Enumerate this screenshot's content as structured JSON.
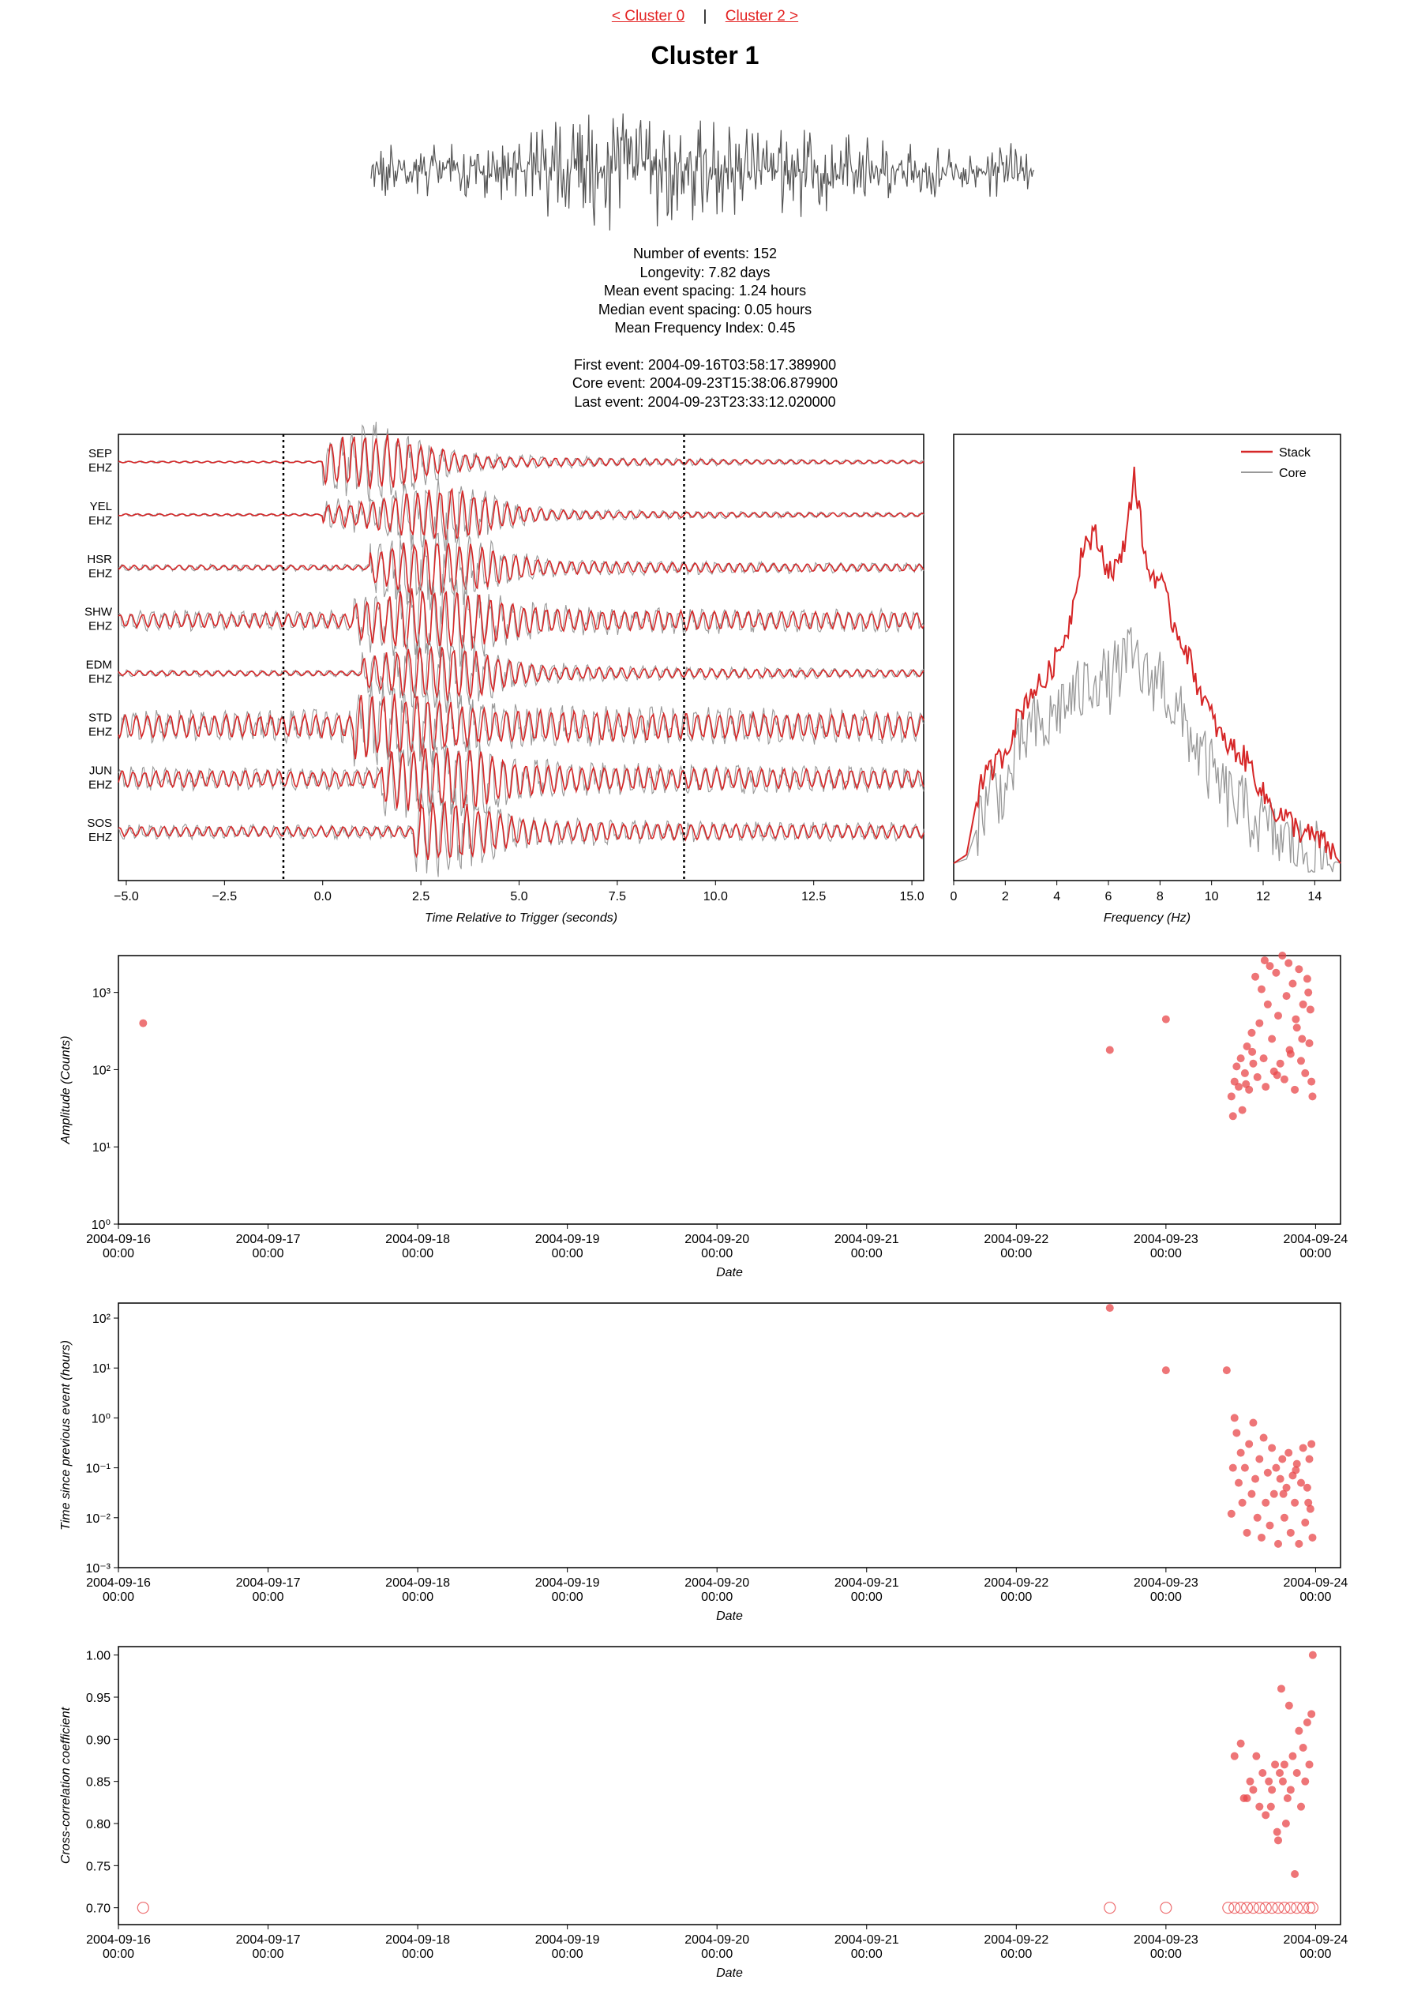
{
  "nav": {
    "prev_label": "< Cluster 0",
    "separator": "|",
    "next_label": "Cluster 2 >"
  },
  "page_title": "Cluster 1",
  "stats": {
    "num_events": "Number of events: 152",
    "longevity": "Longevity: 7.82 days",
    "mean_spacing": "Mean event spacing: 1.24 hours",
    "median_spacing": "Median event spacing: 0.05 hours",
    "mean_fi": "Mean Frequency Index: 0.45",
    "first_event": "First event: 2004-09-16T03:58:17.389900",
    "core_event": "Core event: 2004-09-23T15:38:06.879900",
    "last_event": "Last event: 2004-09-23T23:33:12.020000"
  },
  "colors": {
    "stack": "#d62728",
    "core": "#999999",
    "marker": "#e8474a",
    "nav_link": "#e32222"
  },
  "chart_data": [
    {
      "type": "line",
      "id": "waveforms",
      "xlabel": "Time Relative to Trigger (seconds)",
      "ylabel": "",
      "xlim": [
        -5.2,
        15.3
      ],
      "xticks": [
        -5.0,
        -2.5,
        0.0,
        2.5,
        5.0,
        7.5,
        10.0,
        12.5,
        15.0
      ],
      "tick_labels": [
        "−5.0",
        "−2.5",
        "0.0",
        "2.5",
        "5.0",
        "7.5",
        "10.0",
        "12.5",
        "15.0"
      ],
      "window_markers": [
        -1.0,
        9.2
      ],
      "stations": [
        {
          "station": "SEP",
          "channel": "EHZ",
          "onset": 0.0,
          "peak": 1.3,
          "noise": 0.04
        },
        {
          "station": "YEL",
          "channel": "EHZ",
          "onset": 0.0,
          "peak": 3.0,
          "noise": 0.05
        },
        {
          "station": "HSR",
          "channel": "EHZ",
          "onset": 1.2,
          "peak": 3.0,
          "noise": 0.12
        },
        {
          "station": "SHW",
          "channel": "EHZ",
          "onset": 0.8,
          "peak": 3.0,
          "noise": 0.35
        },
        {
          "station": "EDM",
          "channel": "EHZ",
          "onset": 1.0,
          "peak": 3.0,
          "noise": 0.12
        },
        {
          "station": "STD",
          "channel": "EHZ",
          "onset": 0.8,
          "peak": 1.5,
          "noise": 0.55
        },
        {
          "station": "JUN",
          "channel": "EHZ",
          "onset": 1.5,
          "peak": 3.0,
          "noise": 0.4
        },
        {
          "station": "SOS",
          "channel": "EHZ",
          "onset": 2.3,
          "peak": 2.8,
          "noise": 0.25
        }
      ],
      "series": [
        {
          "name": "Stack"
        },
        {
          "name": "Core"
        }
      ]
    },
    {
      "type": "line",
      "id": "spectrum",
      "xlabel": "Frequency (Hz)",
      "ylabel": "",
      "xlim": [
        0,
        15
      ],
      "xticks": [
        0,
        2,
        4,
        6,
        8,
        10,
        12,
        14
      ],
      "legend": "top-right",
      "series": [
        {
          "name": "Stack",
          "points": [
            [
              0,
              0.04
            ],
            [
              0.5,
              0.06
            ],
            [
              1,
              0.22
            ],
            [
              1.5,
              0.26
            ],
            [
              2,
              0.3
            ],
            [
              2.5,
              0.38
            ],
            [
              3,
              0.44
            ],
            [
              3.5,
              0.46
            ],
            [
              4,
              0.52
            ],
            [
              4.5,
              0.6
            ],
            [
              5,
              0.78
            ],
            [
              5.5,
              0.8
            ],
            [
              6,
              0.72
            ],
            [
              6.5,
              0.74
            ],
            [
              7,
              0.94
            ],
            [
              7.5,
              0.72
            ],
            [
              8,
              0.7
            ],
            [
              8.5,
              0.6
            ],
            [
              9,
              0.54
            ],
            [
              9.5,
              0.45
            ],
            [
              10,
              0.38
            ],
            [
              10.5,
              0.32
            ],
            [
              11,
              0.3
            ],
            [
              11.5,
              0.27
            ],
            [
              12,
              0.2
            ],
            [
              12.5,
              0.16
            ],
            [
              13,
              0.14
            ],
            [
              13.5,
              0.11
            ],
            [
              14,
              0.1
            ],
            [
              14.5,
              0.08
            ],
            [
              15,
              0.04
            ]
          ]
        },
        {
          "name": "Core",
          "points": [
            [
              0,
              0.04
            ],
            [
              0.5,
              0.05
            ],
            [
              1,
              0.14
            ],
            [
              1.5,
              0.22
            ],
            [
              2,
              0.2
            ],
            [
              2.5,
              0.3
            ],
            [
              3,
              0.36
            ],
            [
              3.5,
              0.34
            ],
            [
              4,
              0.4
            ],
            [
              4.5,
              0.42
            ],
            [
              5,
              0.44
            ],
            [
              5.5,
              0.48
            ],
            [
              6,
              0.46
            ],
            [
              6.5,
              0.5
            ],
            [
              7,
              0.52
            ],
            [
              7.5,
              0.46
            ],
            [
              8,
              0.48
            ],
            [
              8.5,
              0.4
            ],
            [
              9,
              0.36
            ],
            [
              9.5,
              0.3
            ],
            [
              10,
              0.25
            ],
            [
              10.5,
              0.2
            ],
            [
              11,
              0.18
            ],
            [
              11.5,
              0.15
            ],
            [
              12,
              0.13
            ],
            [
              12.5,
              0.1
            ],
            [
              13,
              0.09
            ],
            [
              13.5,
              0.07
            ],
            [
              14,
              0.06
            ],
            [
              14.5,
              0.05
            ],
            [
              15,
              0.04
            ]
          ]
        }
      ]
    },
    {
      "type": "scatter",
      "id": "amplitude",
      "xlabel": "Date",
      "ylabel": "Amplitude (Counts)",
      "yscale": "log",
      "xlim": [
        "2004-09-16 00:00",
        "2004-09-24 04:00"
      ],
      "ylim": [
        1,
        3000
      ],
      "xtick_dates": [
        "2004-09-16",
        "2004-09-17",
        "2004-09-18",
        "2004-09-19",
        "2004-09-20",
        "2004-09-21",
        "2004-09-22",
        "2004-09-23",
        "2004-09-24"
      ],
      "xtick_time": "00:00",
      "yticks": [
        "10⁰",
        "10¹",
        "10²",
        "10³"
      ],
      "points": [
        [
          "2004-09-16 03:58",
          400
        ],
        [
          "2004-09-22 15:00",
          180
        ],
        [
          "2004-09-23 00:00",
          450
        ],
        [
          "2004-09-23 10:30",
          45
        ],
        [
          "2004-09-23 10:45",
          25
        ],
        [
          "2004-09-23 11:00",
          70
        ],
        [
          "2004-09-23 11:20",
          110
        ],
        [
          "2004-09-23 11:40",
          60
        ],
        [
          "2004-09-23 12:00",
          140
        ],
        [
          "2004-09-23 12:15",
          30
        ],
        [
          "2004-09-23 12:40",
          90
        ],
        [
          "2004-09-23 13:00",
          200
        ],
        [
          "2004-09-23 13:20",
          55
        ],
        [
          "2004-09-23 13:45",
          300
        ],
        [
          "2004-09-23 14:00",
          120
        ],
        [
          "2004-09-23 14:20",
          1600
        ],
        [
          "2004-09-23 14:40",
          80
        ],
        [
          "2004-09-23 15:00",
          400
        ],
        [
          "2004-09-23 15:20",
          1100
        ],
        [
          "2004-09-23 15:40",
          140
        ],
        [
          "2004-09-23 16:00",
          60
        ],
        [
          "2004-09-23 16:20",
          700
        ],
        [
          "2004-09-23 16:40",
          2200
        ],
        [
          "2004-09-23 17:00",
          250
        ],
        [
          "2004-09-23 17:20",
          95
        ],
        [
          "2004-09-23 17:40",
          1800
        ],
        [
          "2004-09-23 18:00",
          500
        ],
        [
          "2004-09-23 18:20",
          120
        ],
        [
          "2004-09-23 18:40",
          3000
        ],
        [
          "2004-09-23 19:00",
          75
        ],
        [
          "2004-09-23 19:20",
          900
        ],
        [
          "2004-09-23 19:40",
          2400
        ],
        [
          "2004-09-23 20:00",
          160
        ],
        [
          "2004-09-23 20:20",
          1300
        ],
        [
          "2004-09-23 20:40",
          55
        ],
        [
          "2004-09-23 21:00",
          350
        ],
        [
          "2004-09-23 21:20",
          2000
        ],
        [
          "2004-09-23 21:40",
          130
        ],
        [
          "2004-09-23 22:00",
          700
        ],
        [
          "2004-09-23 22:20",
          90
        ],
        [
          "2004-09-23 22:40",
          1500
        ],
        [
          "2004-09-23 23:00",
          220
        ],
        [
          "2004-09-23 23:10",
          600
        ],
        [
          "2004-09-23 23:20",
          70
        ],
        [
          "2004-09-23 23:30",
          45
        ],
        [
          "2004-09-23 21:50",
          250
        ],
        [
          "2004-09-23 19:50",
          180
        ],
        [
          "2004-09-23 17:50",
          85
        ],
        [
          "2004-09-23 15:50",
          2600
        ],
        [
          "2004-09-23 13:50",
          170
        ],
        [
          "2004-09-23 12:50",
          65
        ],
        [
          "2004-09-23 22:50",
          1000
        ],
        [
          "2004-09-23 20:50",
          450
        ]
      ]
    },
    {
      "type": "scatter",
      "id": "spacing",
      "xlabel": "Date",
      "ylabel": "Time since previous event (hours)",
      "yscale": "log",
      "xlim": [
        "2004-09-16 00:00",
        "2004-09-24 04:00"
      ],
      "ylim": [
        0.001,
        200
      ],
      "xtick_dates": [
        "2004-09-16",
        "2004-09-17",
        "2004-09-18",
        "2004-09-19",
        "2004-09-20",
        "2004-09-21",
        "2004-09-22",
        "2004-09-23",
        "2004-09-24"
      ],
      "xtick_time": "00:00",
      "yticks": [
        "10⁻³",
        "10⁻²",
        "10⁻¹",
        "10⁰",
        "10¹",
        "10²"
      ],
      "points": [
        [
          "2004-09-22 15:00",
          160
        ],
        [
          "2004-09-23 00:00",
          9
        ],
        [
          "2004-09-23 09:45",
          9
        ],
        [
          "2004-09-23 10:30",
          0.012
        ],
        [
          "2004-09-23 10:45",
          0.1
        ],
        [
          "2004-09-23 11:00",
          1.0
        ],
        [
          "2004-09-23 11:20",
          0.5
        ],
        [
          "2004-09-23 11:40",
          0.05
        ],
        [
          "2004-09-23 12:00",
          0.2
        ],
        [
          "2004-09-23 12:15",
          0.02
        ],
        [
          "2004-09-23 12:40",
          0.1
        ],
        [
          "2004-09-23 13:00",
          0.005
        ],
        [
          "2004-09-23 13:20",
          0.3
        ],
        [
          "2004-09-23 13:45",
          0.03
        ],
        [
          "2004-09-23 14:00",
          0.8
        ],
        [
          "2004-09-23 14:20",
          0.06
        ],
        [
          "2004-09-23 14:40",
          0.01
        ],
        [
          "2004-09-23 15:00",
          0.15
        ],
        [
          "2004-09-23 15:20",
          0.004
        ],
        [
          "2004-09-23 15:40",
          0.4
        ],
        [
          "2004-09-23 16:00",
          0.02
        ],
        [
          "2004-09-23 16:20",
          0.08
        ],
        [
          "2004-09-23 16:40",
          0.007
        ],
        [
          "2004-09-23 17:00",
          0.25
        ],
        [
          "2004-09-23 17:20",
          0.03
        ],
        [
          "2004-09-23 17:40",
          0.1
        ],
        [
          "2004-09-23 18:00",
          0.003
        ],
        [
          "2004-09-23 18:20",
          0.06
        ],
        [
          "2004-09-23 18:40",
          0.15
        ],
        [
          "2004-09-23 19:00",
          0.01
        ],
        [
          "2004-09-23 19:20",
          0.04
        ],
        [
          "2004-09-23 19:40",
          0.2
        ],
        [
          "2004-09-23 20:00",
          0.005
        ],
        [
          "2004-09-23 20:20",
          0.07
        ],
        [
          "2004-09-23 20:40",
          0.02
        ],
        [
          "2004-09-23 21:00",
          0.12
        ],
        [
          "2004-09-23 21:20",
          0.003
        ],
        [
          "2004-09-23 21:40",
          0.05
        ],
        [
          "2004-09-23 22:00",
          0.25
        ],
        [
          "2004-09-23 22:20",
          0.008
        ],
        [
          "2004-09-23 22:40",
          0.04
        ],
        [
          "2004-09-23 23:00",
          0.15
        ],
        [
          "2004-09-23 23:10",
          0.015
        ],
        [
          "2004-09-23 23:20",
          0.3
        ],
        [
          "2004-09-23 23:30",
          0.004
        ],
        [
          "2004-09-23 18:50",
          0.03
        ],
        [
          "2004-09-23 20:50",
          0.09
        ],
        [
          "2004-09-23 22:50",
          0.02
        ]
      ]
    },
    {
      "type": "scatter",
      "id": "correlation",
      "xlabel": "Date",
      "ylabel": "Cross-correlation coefficient",
      "xlim": [
        "2004-09-16 00:00",
        "2004-09-24 04:00"
      ],
      "ylim": [
        0.68,
        1.01
      ],
      "xtick_dates": [
        "2004-09-16",
        "2004-09-17",
        "2004-09-18",
        "2004-09-19",
        "2004-09-20",
        "2004-09-21",
        "2004-09-22",
        "2004-09-23",
        "2004-09-24"
      ],
      "xtick_time": "00:00",
      "yticks": [
        "0.70",
        "0.75",
        "0.80",
        "0.85",
        "0.90",
        "0.95",
        "1.00"
      ],
      "ytick_values": [
        0.7,
        0.75,
        0.8,
        0.85,
        0.9,
        0.95,
        1.0
      ],
      "open_points": [
        [
          "2004-09-16 03:58",
          0.7
        ],
        [
          "2004-09-22 15:00",
          0.7
        ],
        [
          "2004-09-23 00:00",
          0.7
        ],
        [
          "2004-09-23 10:00",
          0.7
        ],
        [
          "2004-09-23 11:00",
          0.7
        ],
        [
          "2004-09-23 12:00",
          0.7
        ],
        [
          "2004-09-23 13:00",
          0.7
        ],
        [
          "2004-09-23 14:00",
          0.7
        ],
        [
          "2004-09-23 15:00",
          0.7
        ],
        [
          "2004-09-23 16:00",
          0.7
        ],
        [
          "2004-09-23 17:00",
          0.7
        ],
        [
          "2004-09-23 18:00",
          0.7
        ],
        [
          "2004-09-23 19:00",
          0.7
        ],
        [
          "2004-09-23 20:00",
          0.7
        ],
        [
          "2004-09-23 21:00",
          0.7
        ],
        [
          "2004-09-23 22:00",
          0.7
        ],
        [
          "2004-09-23 23:00",
          0.7
        ],
        [
          "2004-09-23 23:30",
          0.7
        ]
      ],
      "points": [
        [
          "2004-09-23 11:00",
          0.88
        ],
        [
          "2004-09-23 12:00",
          0.895
        ],
        [
          "2004-09-23 12:30",
          0.83
        ],
        [
          "2004-09-23 13:00",
          0.83
        ],
        [
          "2004-09-23 13:30",
          0.85
        ],
        [
          "2004-09-23 14:00",
          0.84
        ],
        [
          "2004-09-23 14:30",
          0.88
        ],
        [
          "2004-09-23 15:00",
          0.82
        ],
        [
          "2004-09-23 15:30",
          0.86
        ],
        [
          "2004-09-23 16:00",
          0.81
        ],
        [
          "2004-09-23 16:30",
          0.85
        ],
        [
          "2004-09-23 17:00",
          0.84
        ],
        [
          "2004-09-23 17:30",
          0.87
        ],
        [
          "2004-09-23 18:00",
          0.78
        ],
        [
          "2004-09-23 18:15",
          0.86
        ],
        [
          "2004-09-23 18:30",
          0.96
        ],
        [
          "2004-09-23 18:45",
          0.85
        ],
        [
          "2004-09-23 19:00",
          0.87
        ],
        [
          "2004-09-23 19:15",
          0.8
        ],
        [
          "2004-09-23 19:30",
          0.83
        ],
        [
          "2004-09-23 19:45",
          0.94
        ],
        [
          "2004-09-23 20:00",
          0.84
        ],
        [
          "2004-09-23 20:20",
          0.88
        ],
        [
          "2004-09-23 20:40",
          0.74
        ],
        [
          "2004-09-23 21:00",
          0.86
        ],
        [
          "2004-09-23 21:20",
          0.91
        ],
        [
          "2004-09-23 21:40",
          0.82
        ],
        [
          "2004-09-23 22:00",
          0.89
        ],
        [
          "2004-09-23 22:20",
          0.85
        ],
        [
          "2004-09-23 22:40",
          0.92
        ],
        [
          "2004-09-23 23:00",
          0.87
        ],
        [
          "2004-09-23 23:20",
          0.93
        ],
        [
          "2004-09-23 23:33",
          1.0
        ],
        [
          "2004-09-23 17:50",
          0.79
        ],
        [
          "2004-09-23 16:50",
          0.82
        ]
      ]
    }
  ]
}
